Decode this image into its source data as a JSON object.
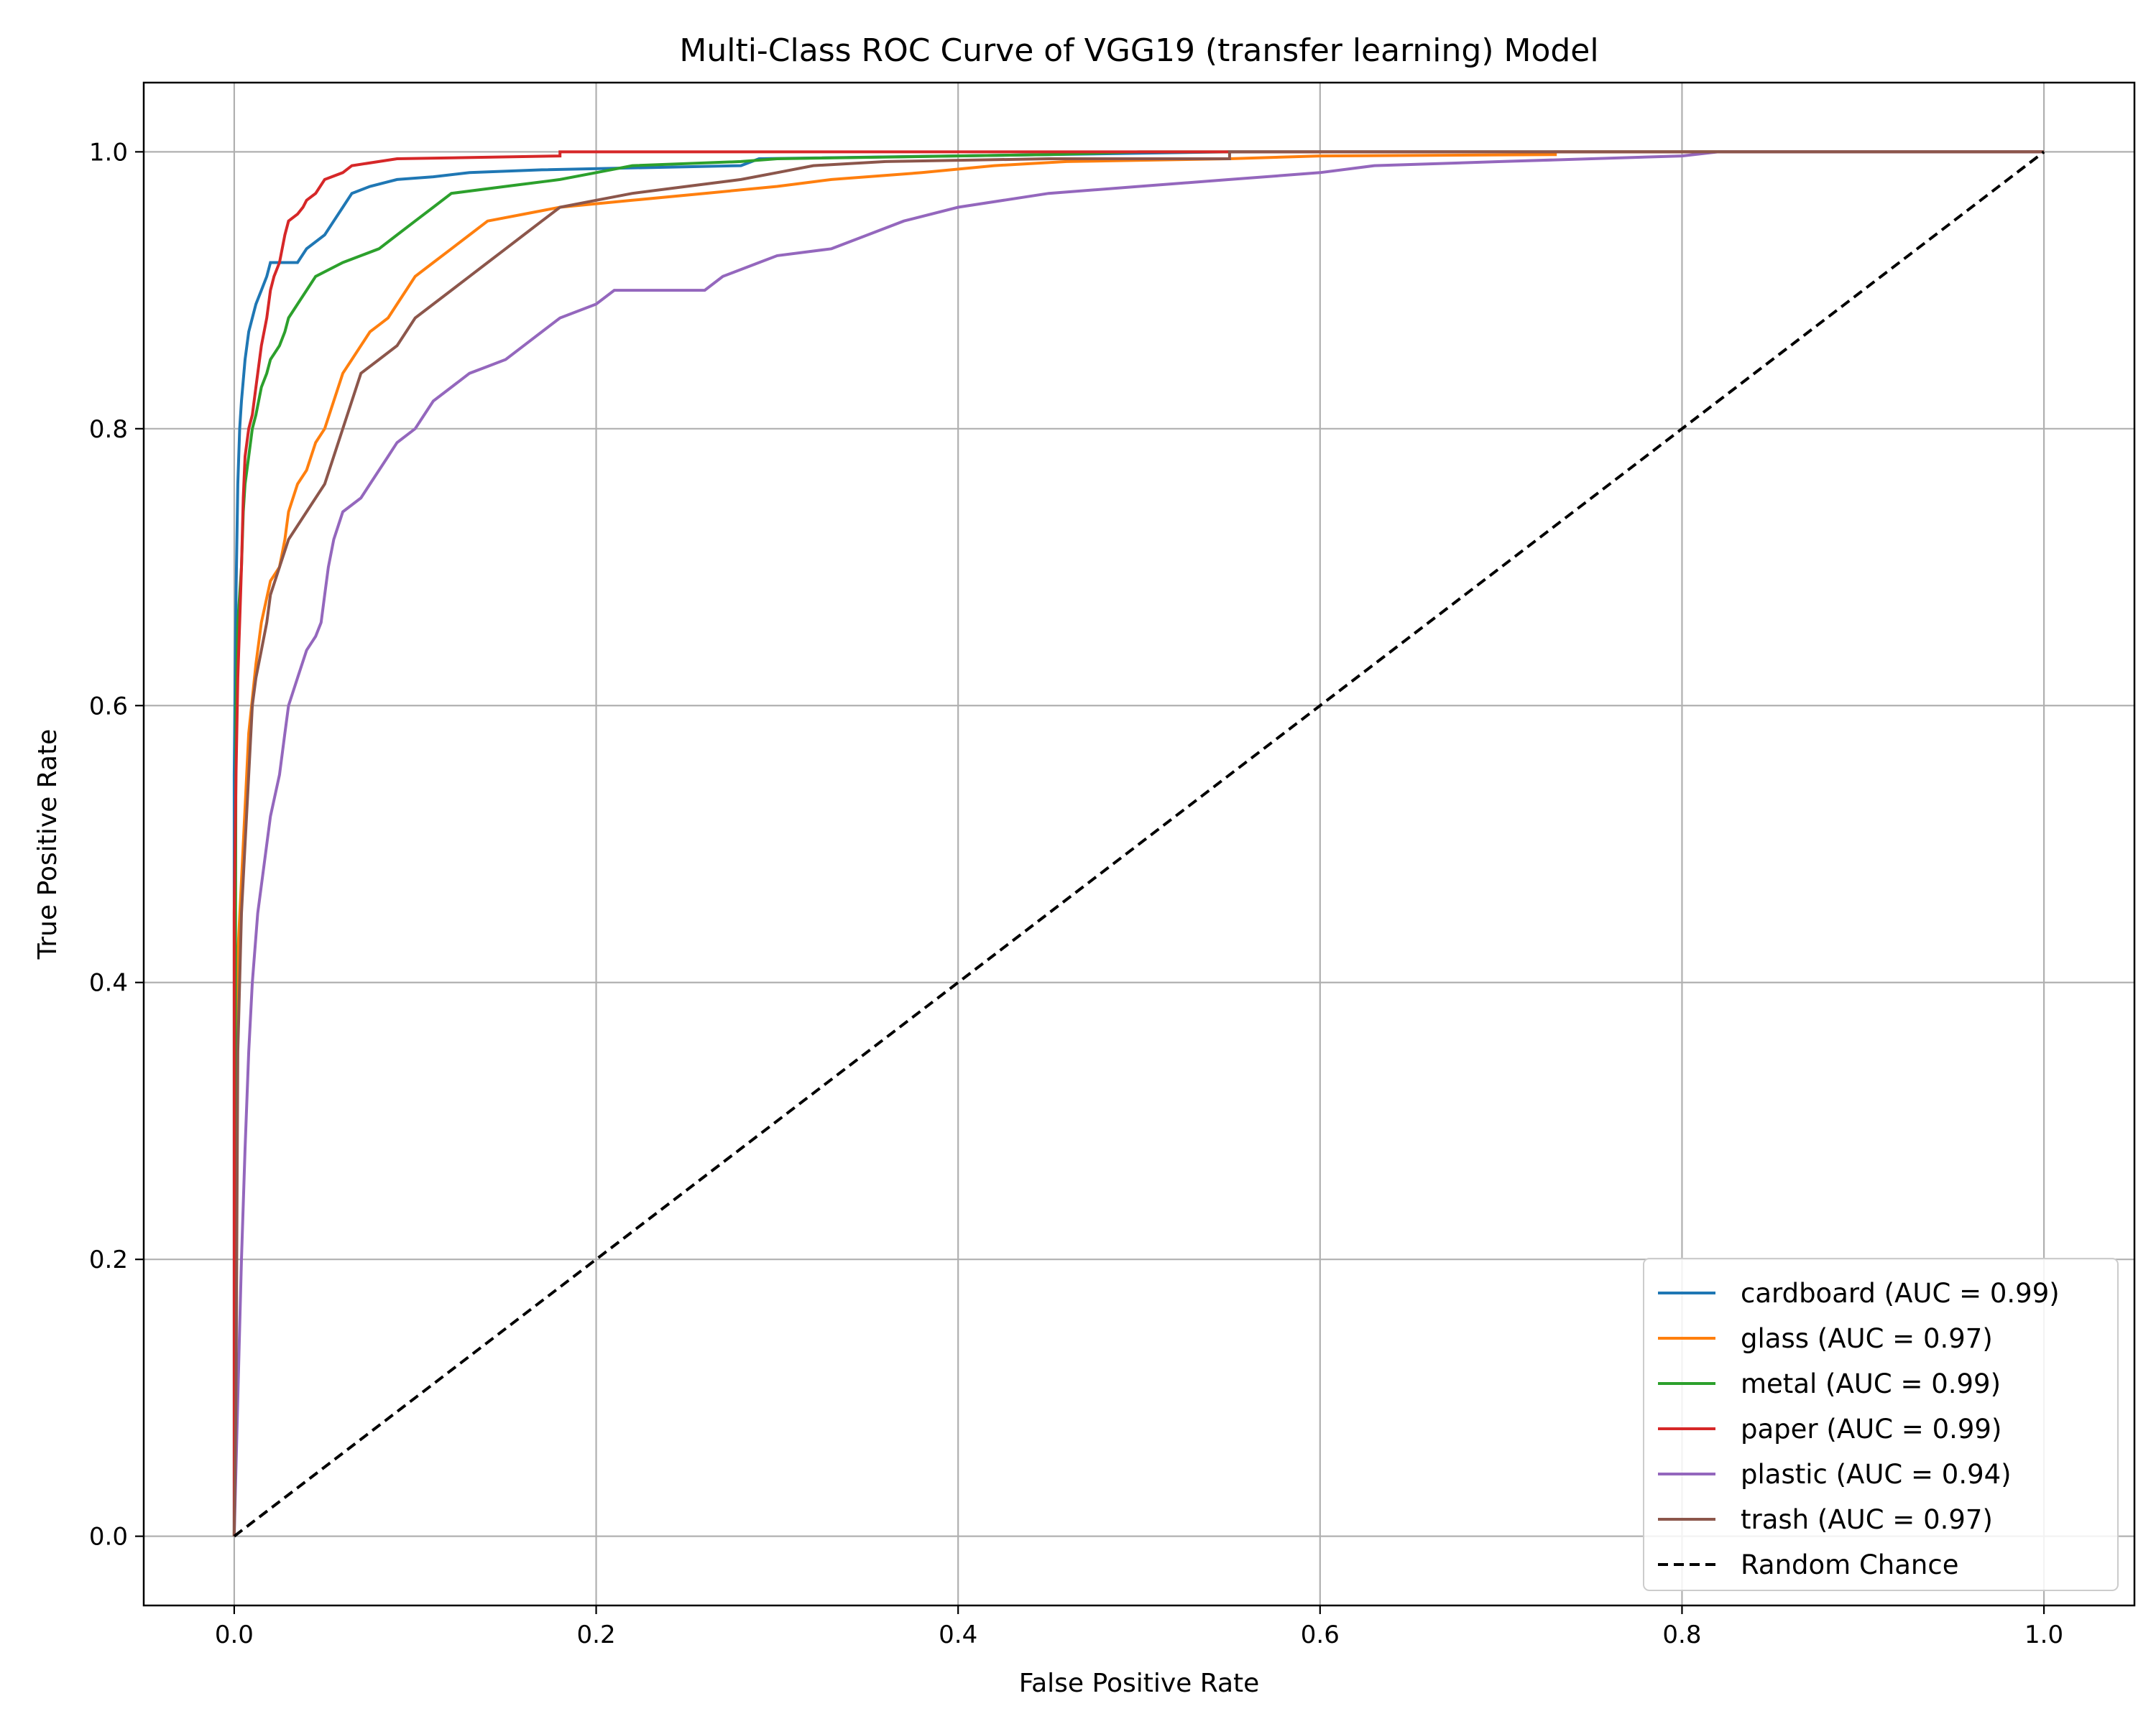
{
  "chart_data": {
    "type": "line",
    "title": "Multi-Class ROC Curve of VGG19 (transfer learning) Model",
    "xlabel": "False Positive Rate",
    "ylabel": "True Positive Rate",
    "xlim": [
      -0.05,
      1.05
    ],
    "ylim": [
      -0.05,
      1.05
    ],
    "xticks": [
      "0.0",
      "0.2",
      "0.4",
      "0.6",
      "0.8",
      "1.0"
    ],
    "yticks": [
      "0.0",
      "0.2",
      "0.4",
      "0.6",
      "0.8",
      "1.0"
    ],
    "grid": true,
    "legend_position": "lower-right",
    "series": [
      {
        "name": "cardboard (AUC = 0.99)",
        "color": "#1f77b4",
        "dash": "solid",
        "points": [
          [
            0.0,
            0.0
          ],
          [
            0.0,
            0.55
          ],
          [
            0.001,
            0.68
          ],
          [
            0.002,
            0.76
          ],
          [
            0.003,
            0.8
          ],
          [
            0.004,
            0.82
          ],
          [
            0.006,
            0.85
          ],
          [
            0.008,
            0.87
          ],
          [
            0.01,
            0.88
          ],
          [
            0.012,
            0.89
          ],
          [
            0.015,
            0.9
          ],
          [
            0.018,
            0.91
          ],
          [
            0.02,
            0.92
          ],
          [
            0.035,
            0.92
          ],
          [
            0.04,
            0.93
          ],
          [
            0.05,
            0.94
          ],
          [
            0.055,
            0.95
          ],
          [
            0.06,
            0.96
          ],
          [
            0.065,
            0.97
          ],
          [
            0.075,
            0.975
          ],
          [
            0.09,
            0.98
          ],
          [
            0.11,
            0.982
          ],
          [
            0.13,
            0.985
          ],
          [
            0.17,
            0.987
          ],
          [
            0.28,
            0.99
          ],
          [
            0.29,
            0.995
          ],
          [
            0.45,
            0.998
          ],
          [
            0.55,
            1.0
          ],
          [
            1.0,
            1.0
          ]
        ]
      },
      {
        "name": "glass (AUC = 0.97)",
        "color": "#ff7f0e",
        "dash": "solid",
        "points": [
          [
            0.0,
            0.0
          ],
          [
            0.002,
            0.42
          ],
          [
            0.005,
            0.5
          ],
          [
            0.008,
            0.58
          ],
          [
            0.012,
            0.63
          ],
          [
            0.015,
            0.66
          ],
          [
            0.02,
            0.69
          ],
          [
            0.025,
            0.7
          ],
          [
            0.028,
            0.72
          ],
          [
            0.03,
            0.74
          ],
          [
            0.035,
            0.76
          ],
          [
            0.04,
            0.77
          ],
          [
            0.045,
            0.79
          ],
          [
            0.05,
            0.8
          ],
          [
            0.055,
            0.82
          ],
          [
            0.06,
            0.84
          ],
          [
            0.065,
            0.85
          ],
          [
            0.07,
            0.86
          ],
          [
            0.075,
            0.87
          ],
          [
            0.08,
            0.875
          ],
          [
            0.085,
            0.88
          ],
          [
            0.09,
            0.89
          ],
          [
            0.095,
            0.9
          ],
          [
            0.1,
            0.91
          ],
          [
            0.11,
            0.92
          ],
          [
            0.12,
            0.93
          ],
          [
            0.13,
            0.94
          ],
          [
            0.14,
            0.95
          ],
          [
            0.16,
            0.955
          ],
          [
            0.18,
            0.96
          ],
          [
            0.22,
            0.965
          ],
          [
            0.26,
            0.97
          ],
          [
            0.3,
            0.975
          ],
          [
            0.33,
            0.98
          ],
          [
            0.38,
            0.985
          ],
          [
            0.42,
            0.99
          ],
          [
            0.46,
            0.993
          ],
          [
            0.55,
            0.995
          ],
          [
            0.6,
            0.997
          ],
          [
            0.73,
            0.998
          ],
          [
            0.73,
            1.0
          ],
          [
            1.0,
            1.0
          ]
        ]
      },
      {
        "name": "metal (AUC = 0.99)",
        "color": "#2ca02c",
        "dash": "solid",
        "points": [
          [
            0.0,
            0.0
          ],
          [
            0.001,
            0.6
          ],
          [
            0.002,
            0.66
          ],
          [
            0.004,
            0.7
          ],
          [
            0.005,
            0.74
          ],
          [
            0.006,
            0.76
          ],
          [
            0.008,
            0.78
          ],
          [
            0.01,
            0.8
          ],
          [
            0.012,
            0.81
          ],
          [
            0.015,
            0.83
          ],
          [
            0.018,
            0.84
          ],
          [
            0.02,
            0.85
          ],
          [
            0.025,
            0.86
          ],
          [
            0.028,
            0.87
          ],
          [
            0.03,
            0.88
          ],
          [
            0.035,
            0.89
          ],
          [
            0.04,
            0.9
          ],
          [
            0.045,
            0.91
          ],
          [
            0.06,
            0.92
          ],
          [
            0.07,
            0.925
          ],
          [
            0.08,
            0.93
          ],
          [
            0.09,
            0.94
          ],
          [
            0.1,
            0.95
          ],
          [
            0.11,
            0.96
          ],
          [
            0.12,
            0.97
          ],
          [
            0.15,
            0.975
          ],
          [
            0.18,
            0.98
          ],
          [
            0.2,
            0.985
          ],
          [
            0.22,
            0.99
          ],
          [
            0.28,
            0.993
          ],
          [
            0.3,
            0.995
          ],
          [
            0.45,
            0.998
          ],
          [
            0.5,
            1.0
          ],
          [
            1.0,
            1.0
          ]
        ]
      },
      {
        "name": "paper (AUC = 0.99)",
        "color": "#d62728",
        "dash": "solid",
        "points": [
          [
            0.0,
            0.0
          ],
          [
            0.0,
            0.45
          ],
          [
            0.001,
            0.55
          ],
          [
            0.002,
            0.62
          ],
          [
            0.003,
            0.66
          ],
          [
            0.004,
            0.7
          ],
          [
            0.005,
            0.75
          ],
          [
            0.006,
            0.78
          ],
          [
            0.008,
            0.8
          ],
          [
            0.01,
            0.81
          ],
          [
            0.012,
            0.83
          ],
          [
            0.015,
            0.86
          ],
          [
            0.018,
            0.88
          ],
          [
            0.02,
            0.9
          ],
          [
            0.022,
            0.91
          ],
          [
            0.025,
            0.92
          ],
          [
            0.028,
            0.94
          ],
          [
            0.03,
            0.95
          ],
          [
            0.035,
            0.955
          ],
          [
            0.038,
            0.96
          ],
          [
            0.04,
            0.965
          ],
          [
            0.045,
            0.97
          ],
          [
            0.05,
            0.98
          ],
          [
            0.06,
            0.985
          ],
          [
            0.065,
            0.99
          ],
          [
            0.09,
            0.995
          ],
          [
            0.18,
            0.997
          ],
          [
            0.18,
            1.0
          ],
          [
            1.0,
            1.0
          ]
        ]
      },
      {
        "name": "plastic (AUC = 0.94)",
        "color": "#9467bd",
        "dash": "solid",
        "points": [
          [
            0.0,
            0.0
          ],
          [
            0.002,
            0.1
          ],
          [
            0.004,
            0.2
          ],
          [
            0.006,
            0.28
          ],
          [
            0.008,
            0.35
          ],
          [
            0.01,
            0.4
          ],
          [
            0.013,
            0.45
          ],
          [
            0.016,
            0.48
          ],
          [
            0.02,
            0.52
          ],
          [
            0.025,
            0.55
          ],
          [
            0.028,
            0.58
          ],
          [
            0.03,
            0.6
          ],
          [
            0.035,
            0.62
          ],
          [
            0.04,
            0.64
          ],
          [
            0.045,
            0.65
          ],
          [
            0.048,
            0.66
          ],
          [
            0.05,
            0.68
          ],
          [
            0.052,
            0.7
          ],
          [
            0.055,
            0.72
          ],
          [
            0.06,
            0.74
          ],
          [
            0.07,
            0.75
          ],
          [
            0.075,
            0.76
          ],
          [
            0.08,
            0.77
          ],
          [
            0.085,
            0.78
          ],
          [
            0.09,
            0.79
          ],
          [
            0.1,
            0.8
          ],
          [
            0.105,
            0.81
          ],
          [
            0.11,
            0.82
          ],
          [
            0.12,
            0.83
          ],
          [
            0.13,
            0.84
          ],
          [
            0.14,
            0.845
          ],
          [
            0.15,
            0.85
          ],
          [
            0.16,
            0.86
          ],
          [
            0.17,
            0.87
          ],
          [
            0.18,
            0.88
          ],
          [
            0.2,
            0.89
          ],
          [
            0.21,
            0.9
          ],
          [
            0.26,
            0.9
          ],
          [
            0.27,
            0.91
          ],
          [
            0.29,
            0.92
          ],
          [
            0.3,
            0.925
          ],
          [
            0.33,
            0.93
          ],
          [
            0.35,
            0.94
          ],
          [
            0.37,
            0.95
          ],
          [
            0.4,
            0.96
          ],
          [
            0.45,
            0.97
          ],
          [
            0.5,
            0.975
          ],
          [
            0.55,
            0.98
          ],
          [
            0.6,
            0.985
          ],
          [
            0.63,
            0.99
          ],
          [
            0.7,
            0.993
          ],
          [
            0.75,
            0.995
          ],
          [
            0.8,
            0.997
          ],
          [
            0.82,
            1.0
          ],
          [
            1.0,
            1.0
          ]
        ]
      },
      {
        "name": "trash (AUC = 0.97)",
        "color": "#8c564b",
        "dash": "solid",
        "points": [
          [
            0.0,
            0.0
          ],
          [
            0.001,
            0.1
          ],
          [
            0.002,
            0.35
          ],
          [
            0.004,
            0.45
          ],
          [
            0.006,
            0.5
          ],
          [
            0.008,
            0.55
          ],
          [
            0.01,
            0.6
          ],
          [
            0.012,
            0.62
          ],
          [
            0.015,
            0.64
          ],
          [
            0.018,
            0.66
          ],
          [
            0.02,
            0.68
          ],
          [
            0.025,
            0.7
          ],
          [
            0.03,
            0.72
          ],
          [
            0.04,
            0.74
          ],
          [
            0.05,
            0.76
          ],
          [
            0.055,
            0.78
          ],
          [
            0.06,
            0.8
          ],
          [
            0.065,
            0.82
          ],
          [
            0.07,
            0.84
          ],
          [
            0.08,
            0.85
          ],
          [
            0.09,
            0.86
          ],
          [
            0.1,
            0.88
          ],
          [
            0.11,
            0.89
          ],
          [
            0.12,
            0.9
          ],
          [
            0.13,
            0.91
          ],
          [
            0.14,
            0.92
          ],
          [
            0.15,
            0.93
          ],
          [
            0.16,
            0.94
          ],
          [
            0.17,
            0.95
          ],
          [
            0.18,
            0.96
          ],
          [
            0.2,
            0.965
          ],
          [
            0.22,
            0.97
          ],
          [
            0.25,
            0.975
          ],
          [
            0.28,
            0.98
          ],
          [
            0.3,
            0.985
          ],
          [
            0.32,
            0.99
          ],
          [
            0.36,
            0.993
          ],
          [
            0.45,
            0.995
          ],
          [
            0.55,
            0.995
          ],
          [
            0.55,
            1.0
          ],
          [
            1.0,
            1.0
          ]
        ]
      },
      {
        "name": "Random Chance",
        "color": "#000000",
        "dash": "dashed",
        "points": [
          [
            0.0,
            0.0
          ],
          [
            1.0,
            1.0
          ]
        ]
      }
    ]
  }
}
